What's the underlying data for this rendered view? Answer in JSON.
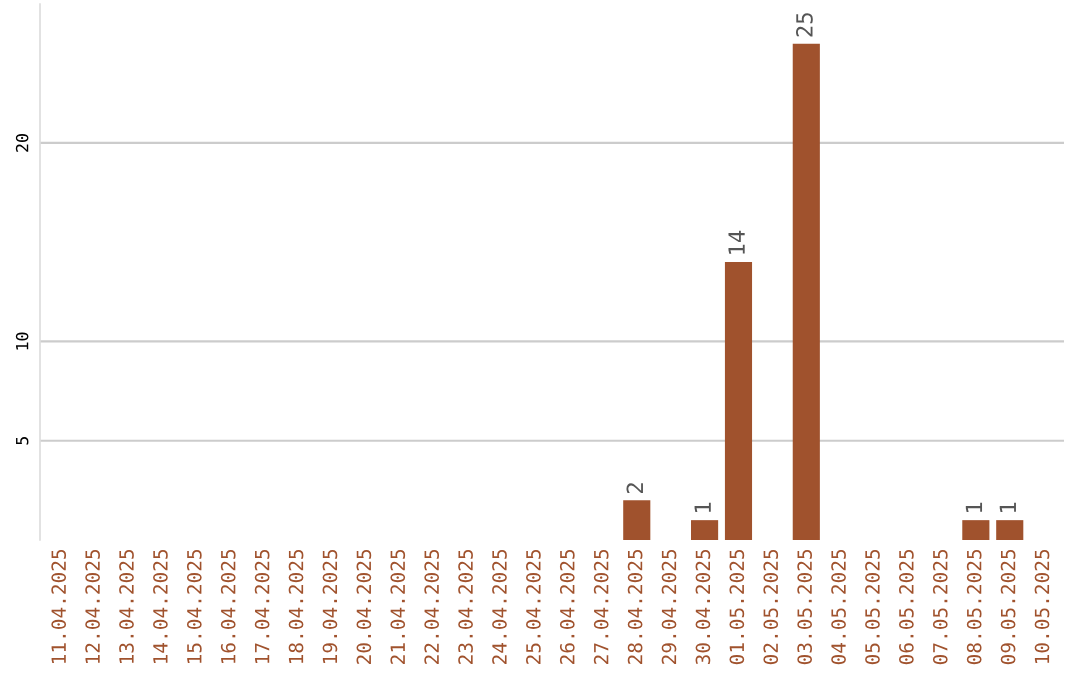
{
  "chart_data": {
    "type": "bar",
    "color": "#a0522d",
    "categories": [
      "11.04.2025",
      "12.04.2025",
      "13.04.2025",
      "14.04.2025",
      "15.04.2025",
      "16.04.2025",
      "17.04.2025",
      "18.04.2025",
      "19.04.2025",
      "20.04.2025",
      "21.04.2025",
      "22.04.2025",
      "23.04.2025",
      "24.04.2025",
      "25.04.2025",
      "26.04.2025",
      "27.04.2025",
      "28.04.2025",
      "29.04.2025",
      "30.04.2025",
      "01.05.2025",
      "02.05.2025",
      "03.05.2025",
      "04.05.2025",
      "05.05.2025",
      "06.05.2025",
      "07.05.2025",
      "08.05.2025",
      "09.05.2025",
      "10.05.2025"
    ],
    "values": [
      0,
      0,
      0,
      0,
      0,
      0,
      0,
      0,
      0,
      0,
      0,
      0,
      0,
      0,
      0,
      0,
      0,
      2,
      0,
      1,
      14,
      0,
      25,
      0,
      0,
      0,
      0,
      1,
      1,
      0
    ],
    "value_labels": [
      null,
      null,
      null,
      null,
      null,
      null,
      null,
      null,
      null,
      null,
      null,
      null,
      null,
      null,
      null,
      null,
      null,
      "2",
      null,
      "1",
      "14",
      null,
      "25",
      null,
      null,
      null,
      null,
      "1",
      "1",
      null
    ],
    "ylim": [
      0,
      27
    ],
    "yticks": [
      5,
      10,
      20
    ],
    "grid": "y"
  }
}
